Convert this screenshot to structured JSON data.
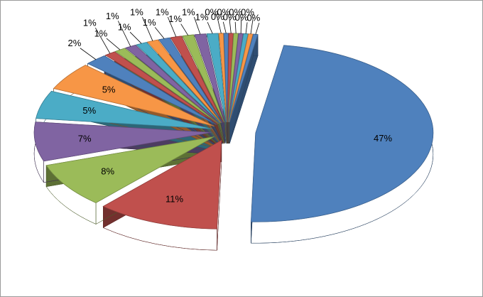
{
  "chart_data": {
    "type": "pie3d",
    "values": [
      47,
      11,
      8,
      7,
      5,
      5,
      2,
      1,
      1,
      1,
      1,
      1,
      1,
      1,
      1,
      1,
      1,
      0.4,
      0.4,
      0.4,
      0.4,
      0.4,
      0.4,
      0.4,
      0.4
    ],
    "value_labels": [
      "47%",
      "11%",
      "8%",
      "7%",
      "5%",
      "5%",
      "2%",
      "1%",
      "1%",
      "1%",
      "1%",
      "1%",
      "1%",
      "1%",
      "1%",
      "1%",
      "1%",
      "0%",
      "0%",
      "0%",
      "0%",
      "0%",
      "0%",
      "0%",
      "0%"
    ],
    "colors": [
      "#4f81bd",
      "#c0504d",
      "#9bbb59",
      "#8064a2",
      "#4bacc6",
      "#f79646"
    ]
  }
}
